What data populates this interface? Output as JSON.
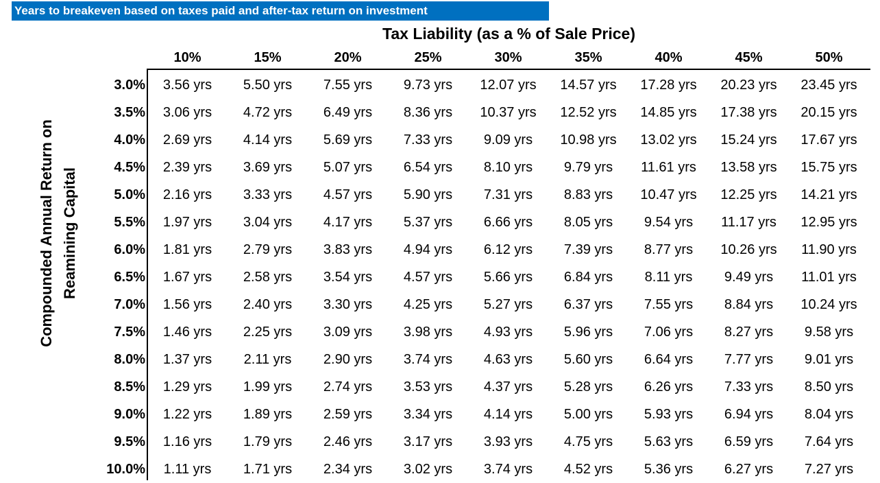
{
  "banner": "Years to breakeven based on taxes paid and after-tax return on investment",
  "column_title": "Tax Liability (as a % of Sale Price)",
  "row_title_line1": "Compounded Annual Return on",
  "row_title_line2": "Reamining Capital",
  "columns": [
    "10%",
    "15%",
    "20%",
    "25%",
    "30%",
    "35%",
    "40%",
    "45%",
    "50%"
  ],
  "rows": [
    {
      "rate": "3.0%",
      "values": [
        "3.56 yrs",
        "5.50 yrs",
        "7.55 yrs",
        "9.73 yrs",
        "12.07 yrs",
        "14.57 yrs",
        "17.28 yrs",
        "20.23 yrs",
        "23.45 yrs"
      ]
    },
    {
      "rate": "3.5%",
      "values": [
        "3.06 yrs",
        "4.72 yrs",
        "6.49 yrs",
        "8.36 yrs",
        "10.37 yrs",
        "12.52 yrs",
        "14.85 yrs",
        "17.38 yrs",
        "20.15 yrs"
      ]
    },
    {
      "rate": "4.0%",
      "values": [
        "2.69 yrs",
        "4.14 yrs",
        "5.69 yrs",
        "7.33 yrs",
        "9.09 yrs",
        "10.98 yrs",
        "13.02 yrs",
        "15.24 yrs",
        "17.67 yrs"
      ]
    },
    {
      "rate": "4.5%",
      "values": [
        "2.39 yrs",
        "3.69 yrs",
        "5.07 yrs",
        "6.54 yrs",
        "8.10 yrs",
        "9.79 yrs",
        "11.61 yrs",
        "13.58 yrs",
        "15.75 yrs"
      ]
    },
    {
      "rate": "5.0%",
      "values": [
        "2.16 yrs",
        "3.33 yrs",
        "4.57 yrs",
        "5.90 yrs",
        "7.31 yrs",
        "8.83 yrs",
        "10.47 yrs",
        "12.25 yrs",
        "14.21 yrs"
      ]
    },
    {
      "rate": "5.5%",
      "values": [
        "1.97 yrs",
        "3.04 yrs",
        "4.17 yrs",
        "5.37 yrs",
        "6.66 yrs",
        "8.05 yrs",
        "9.54 yrs",
        "11.17 yrs",
        "12.95 yrs"
      ]
    },
    {
      "rate": "6.0%",
      "values": [
        "1.81 yrs",
        "2.79 yrs",
        "3.83 yrs",
        "4.94 yrs",
        "6.12 yrs",
        "7.39 yrs",
        "8.77 yrs",
        "10.26 yrs",
        "11.90 yrs"
      ]
    },
    {
      "rate": "6.5%",
      "values": [
        "1.67 yrs",
        "2.58 yrs",
        "3.54 yrs",
        "4.57 yrs",
        "5.66 yrs",
        "6.84 yrs",
        "8.11 yrs",
        "9.49 yrs",
        "11.01 yrs"
      ]
    },
    {
      "rate": "7.0%",
      "values": [
        "1.56 yrs",
        "2.40 yrs",
        "3.30 yrs",
        "4.25 yrs",
        "5.27 yrs",
        "6.37 yrs",
        "7.55 yrs",
        "8.84 yrs",
        "10.24 yrs"
      ]
    },
    {
      "rate": "7.5%",
      "values": [
        "1.46 yrs",
        "2.25 yrs",
        "3.09 yrs",
        "3.98 yrs",
        "4.93 yrs",
        "5.96 yrs",
        "7.06 yrs",
        "8.27 yrs",
        "9.58 yrs"
      ]
    },
    {
      "rate": "8.0%",
      "values": [
        "1.37 yrs",
        "2.11 yrs",
        "2.90 yrs",
        "3.74 yrs",
        "4.63 yrs",
        "5.60 yrs",
        "6.64 yrs",
        "7.77 yrs",
        "9.01 yrs"
      ]
    },
    {
      "rate": "8.5%",
      "values": [
        "1.29 yrs",
        "1.99 yrs",
        "2.74 yrs",
        "3.53 yrs",
        "4.37 yrs",
        "5.28 yrs",
        "6.26 yrs",
        "7.33 yrs",
        "8.50 yrs"
      ]
    },
    {
      "rate": "9.0%",
      "values": [
        "1.22 yrs",
        "1.89 yrs",
        "2.59 yrs",
        "3.34 yrs",
        "4.14 yrs",
        "5.00 yrs",
        "5.93 yrs",
        "6.94 yrs",
        "8.04 yrs"
      ]
    },
    {
      "rate": "9.5%",
      "values": [
        "1.16 yrs",
        "1.79 yrs",
        "2.46 yrs",
        "3.17 yrs",
        "3.93 yrs",
        "4.75 yrs",
        "5.63 yrs",
        "6.59 yrs",
        "7.64 yrs"
      ]
    },
    {
      "rate": "10.0%",
      "values": [
        "1.11 yrs",
        "1.71 yrs",
        "2.34 yrs",
        "3.02 yrs",
        "3.74 yrs",
        "4.52 yrs",
        "5.36 yrs",
        "6.27 yrs",
        "7.27 yrs"
      ]
    }
  ],
  "colors": {
    "banner_bg": "#0070c0",
    "banner_text": "#ffffff",
    "text": "#000000"
  }
}
